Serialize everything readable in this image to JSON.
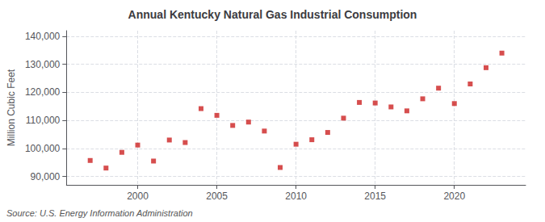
{
  "chart_data": {
    "type": "scatter",
    "title": "Annual Kentucky Natural Gas Industrial Consumption",
    "ylabel": "Million Cubic Feet",
    "source": "Source: U.S. Energy Information Administration",
    "x": [
      1997,
      1998,
      1999,
      2000,
      2001,
      2002,
      2003,
      2004,
      2005,
      2006,
      2007,
      2008,
      2009,
      2010,
      2011,
      2012,
      2013,
      2014,
      2015,
      2016,
      2017,
      2018,
      2019,
      2020,
      2021,
      2022,
      2023
    ],
    "values": [
      95700,
      93000,
      98600,
      101200,
      95500,
      103000,
      102100,
      114200,
      111800,
      108200,
      109400,
      106200,
      93200,
      101500,
      103100,
      105700,
      110800,
      116400,
      116200,
      114800,
      113400,
      117700,
      121500,
      116000,
      123000,
      128800,
      134000
    ],
    "color": "#cc2222",
    "marker": "square",
    "xlim": [
      1995.5,
      2024.5
    ],
    "xticks": [
      2000,
      2005,
      2010,
      2015,
      2020
    ],
    "ylim": [
      87000,
      142000
    ],
    "yticks": [
      {
        "value": 90000,
        "label": "90,000"
      },
      {
        "value": 100000,
        "label": "100,000"
      },
      {
        "value": 110000,
        "label": "110,000"
      },
      {
        "value": 120000,
        "label": "120,000"
      },
      {
        "value": 130000,
        "label": "130,000"
      },
      {
        "value": 140000,
        "label": "140,000"
      }
    ],
    "grid": true
  }
}
